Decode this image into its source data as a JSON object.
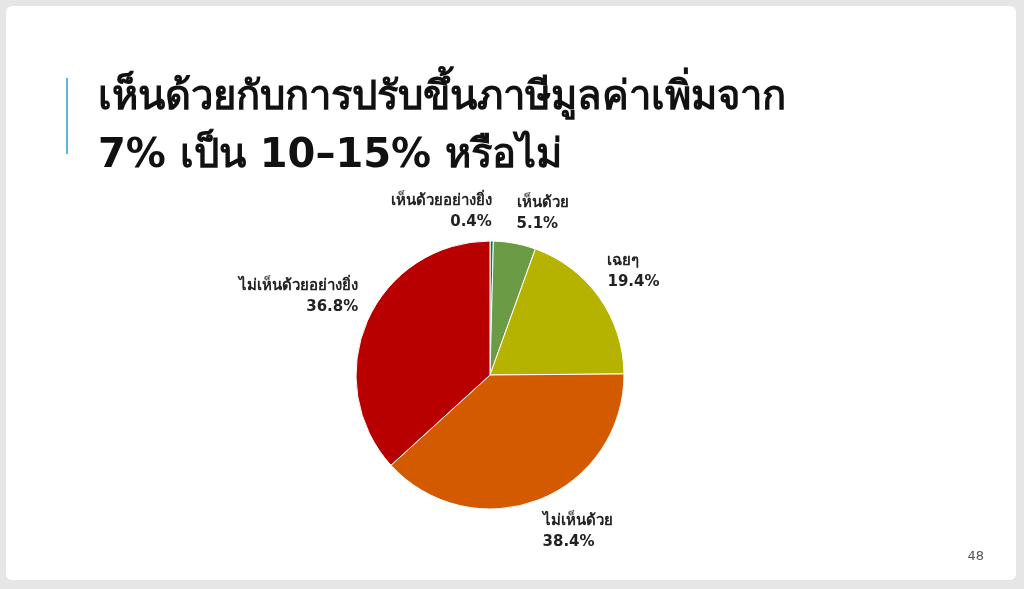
{
  "chart_data": {
    "type": "pie",
    "title": "เห็นด้วยกับการปรับขึ้นภาษีมูลค่าเพิ่มจาก 7% เป็น 10–15% หรือไม่",
    "categories": [
      "เห็นด้วยอย่างยิ่ง",
      "เห็นด้วย",
      "เฉยๆ",
      "ไม่เห็นด้วย",
      "ไม่เห็นด้วยอย่างยิ่ง"
    ],
    "values": [
      0.4,
      5.1,
      19.4,
      38.4,
      36.8
    ],
    "value_labels": [
      "0.4%",
      "5.1%",
      "19.4%",
      "38.4%",
      "36.8%"
    ],
    "colors": [
      "#0b7a4a",
      "#6b9b45",
      "#b5b300",
      "#d45a00",
      "#b80000"
    ],
    "annotations": [
      "48"
    ]
  }
}
